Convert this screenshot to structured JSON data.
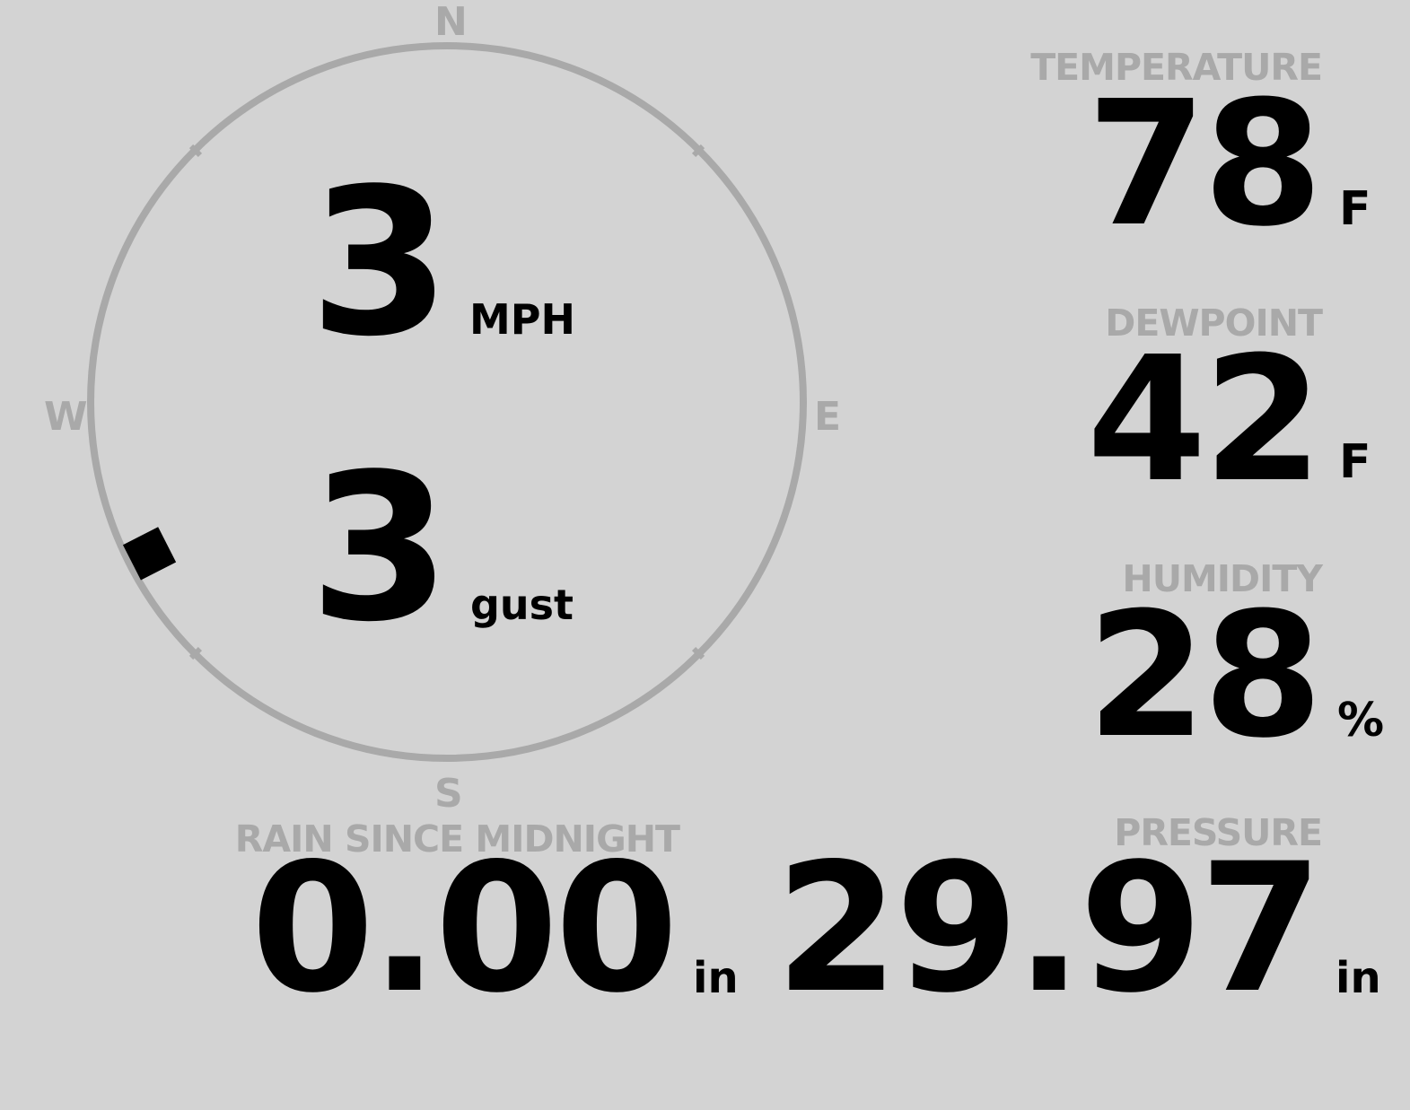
{
  "colors": {
    "background": "#d3d3d3",
    "label": "#a9a9a9",
    "value": "#000000"
  },
  "wind": {
    "compass": {
      "north": "N",
      "east": "E",
      "south": "S",
      "west": "W"
    },
    "direction_deg": 243,
    "speed": "3",
    "speed_unit": "MPH",
    "gust": "3",
    "gust_unit": "gust"
  },
  "temperature": {
    "label": "TEMPERATURE",
    "value": "78",
    "unit": "F"
  },
  "dewpoint": {
    "label": "DEWPOINT",
    "value": "42",
    "unit": "F"
  },
  "humidity": {
    "label": "HUMIDITY",
    "value": "28",
    "unit": "%"
  },
  "rain": {
    "label": "RAIN SINCE MIDNIGHT",
    "value": "0.00",
    "unit": "in"
  },
  "pressure": {
    "label": "PRESSURE",
    "value": "29.97",
    "unit": "in"
  }
}
